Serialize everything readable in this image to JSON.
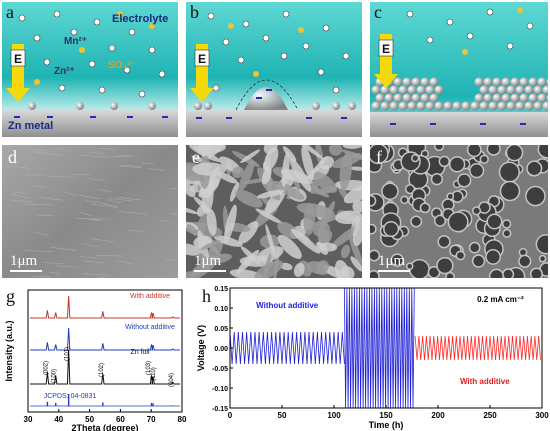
{
  "panels": {
    "a": {
      "letter": "a",
      "electrolyte": "Electrolyte",
      "mn": "Mn²⁺",
      "zn2": "Zn²⁺",
      "so4": "SO₄²⁻",
      "field": "E",
      "metal": "Zn metal"
    },
    "b": {
      "letter": "b",
      "field": "E"
    },
    "c": {
      "letter": "c",
      "field": "E"
    },
    "d": {
      "letter": "d",
      "scale": "1μm"
    },
    "e": {
      "letter": "e",
      "scale": "1μm"
    },
    "f": {
      "letter": "f",
      "scale": "1μm"
    }
  },
  "chart_data": [
    {
      "panel": "g",
      "type": "line",
      "xlabel": "2Theta (degree)",
      "ylabel": "Intensity (a.u.)",
      "xlim": [
        30,
        80
      ],
      "xticks": [
        30,
        40,
        50,
        60,
        70,
        80
      ],
      "series": [
        {
          "name": "With additive",
          "color": "#c0392b"
        },
        {
          "name": "Without additive",
          "color": "#1f3fbf"
        },
        {
          "name": "Zn foil",
          "color": "#111111"
        },
        {
          "name": "JCPDS: 04-0831",
          "color": "#1f3fbf"
        }
      ],
      "peaks": [
        {
          "two_theta": 36.3,
          "label": "(002)",
          "rel": 0.35
        },
        {
          "two_theta": 39.0,
          "label": "(100)",
          "rel": 0.25
        },
        {
          "two_theta": 43.2,
          "label": "(101)",
          "rel": 1.0
        },
        {
          "two_theta": 54.3,
          "label": "(102)",
          "rel": 0.3
        },
        {
          "two_theta": 70.1,
          "label": "(103)",
          "rel": 0.25
        },
        {
          "two_theta": 70.6,
          "label": "(110)",
          "rel": 0.22
        },
        {
          "two_theta": 77.0,
          "label": "(004)",
          "rel": 0.05
        }
      ]
    },
    {
      "panel": "h",
      "type": "line",
      "xlabel": "Time (h)",
      "ylabel": "Voltage (V)",
      "xlim": [
        0,
        300
      ],
      "ylim": [
        -0.15,
        0.15
      ],
      "xticks": [
        0,
        50,
        100,
        150,
        200,
        250,
        300
      ],
      "yticks": [
        -0.15,
        -0.1,
        -0.05,
        0.0,
        0.05,
        0.1,
        0.15
      ],
      "ytick_labels": [
        "-0.15",
        "-0.10",
        "-0.05",
        "0.00",
        "0.05",
        "0.10",
        "0.15"
      ],
      "annotation": "0.2 mA cm⁻²",
      "series": [
        {
          "name": "Without additive",
          "color": "#1f1fd6",
          "x": [
            0,
            110
          ],
          "amplitude": 0.04,
          "short_circuit_x": [
            110,
            178
          ],
          "short_circuit_amplitude": 0.15
        },
        {
          "name": "With additive",
          "color": "#ff2a2a",
          "x": [
            178,
            300
          ],
          "amplitude": 0.03
        }
      ]
    }
  ]
}
